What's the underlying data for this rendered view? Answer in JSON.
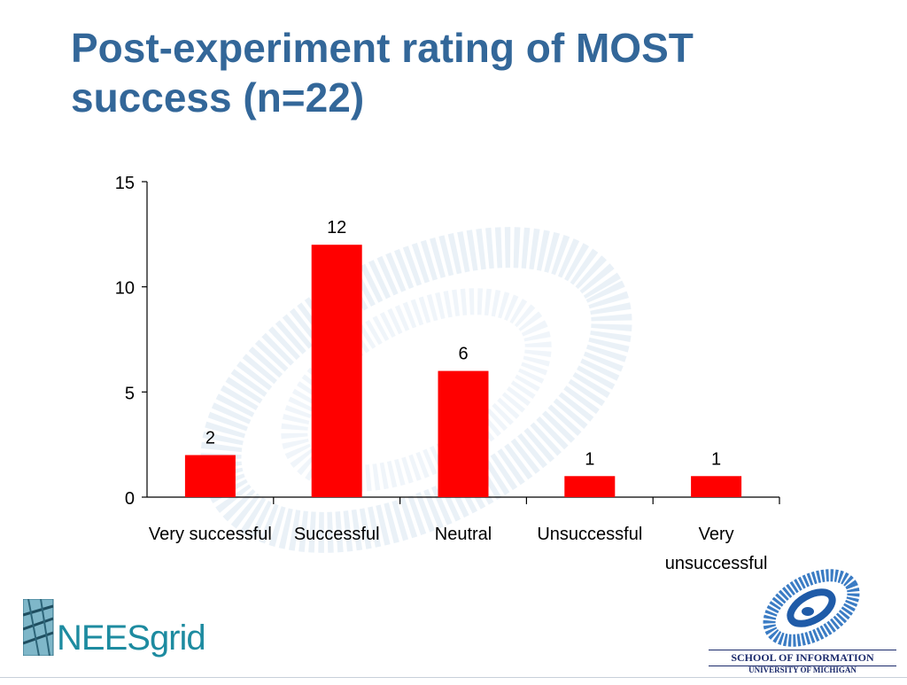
{
  "slide": {
    "title_line1": "Post-experiment rating of MOST",
    "title_line2": "success (n=22)"
  },
  "colors": {
    "title": "#336799",
    "bar": "#ff0000",
    "watermark": "#d9e6f2"
  },
  "chart_data": {
    "type": "bar",
    "title": "",
    "xlabel": "",
    "ylabel": "",
    "categories": [
      [
        "Very successful"
      ],
      [
        "Successful"
      ],
      [
        "Neutral"
      ],
      [
        "Unsuccessful"
      ],
      [
        "Very",
        "unsuccessful"
      ]
    ],
    "values": [
      2,
      12,
      6,
      1,
      1
    ],
    "data_labels": [
      "2",
      "12",
      "6",
      "1",
      "1"
    ],
    "ylim": [
      0,
      15
    ],
    "yticks": [
      0,
      5,
      10,
      15
    ],
    "grid": false,
    "legend": "none"
  },
  "footer": {
    "left_logo_caps": "NEES",
    "left_logo_low": "grid",
    "right_line1": "SCHOOL OF INFORMATION",
    "right_line2": "UNIVERSITY OF MICHIGAN"
  }
}
